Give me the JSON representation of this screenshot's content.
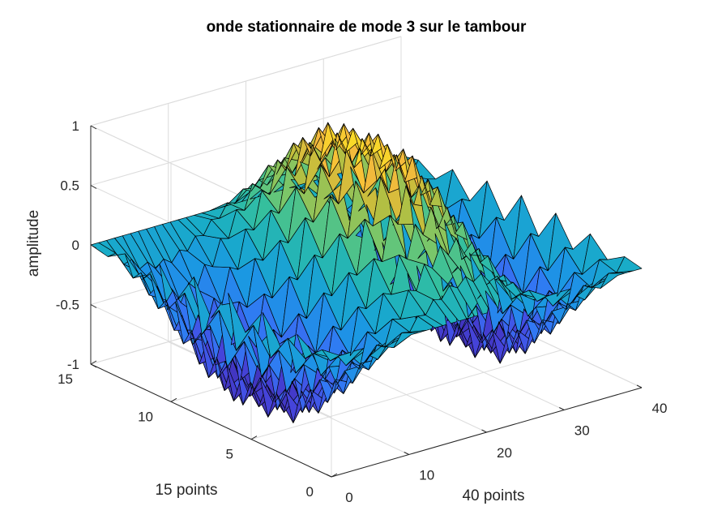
{
  "chart_data": {
    "type": "surface",
    "title": "onde stationnaire de mode 3 sur le tambour",
    "xlabel": "40 points",
    "ylabel": "15 points",
    "zlabel": "amplitude",
    "xlim": [
      0,
      40
    ],
    "ylim": [
      0,
      15
    ],
    "zlim": [
      -1,
      1
    ],
    "xticks": [
      "0",
      "10",
      "20",
      "30",
      "40"
    ],
    "yticks": [
      "0",
      "5",
      "10",
      "15"
    ],
    "zticks": [
      "-1",
      "-0.5",
      "0",
      "0.5",
      "1"
    ],
    "grid": true,
    "colormap": "parula",
    "surface": {
      "x_points": 40,
      "y_points": 15,
      "z_min": -1,
      "z_max": 1,
      "mode": 3
    }
  }
}
